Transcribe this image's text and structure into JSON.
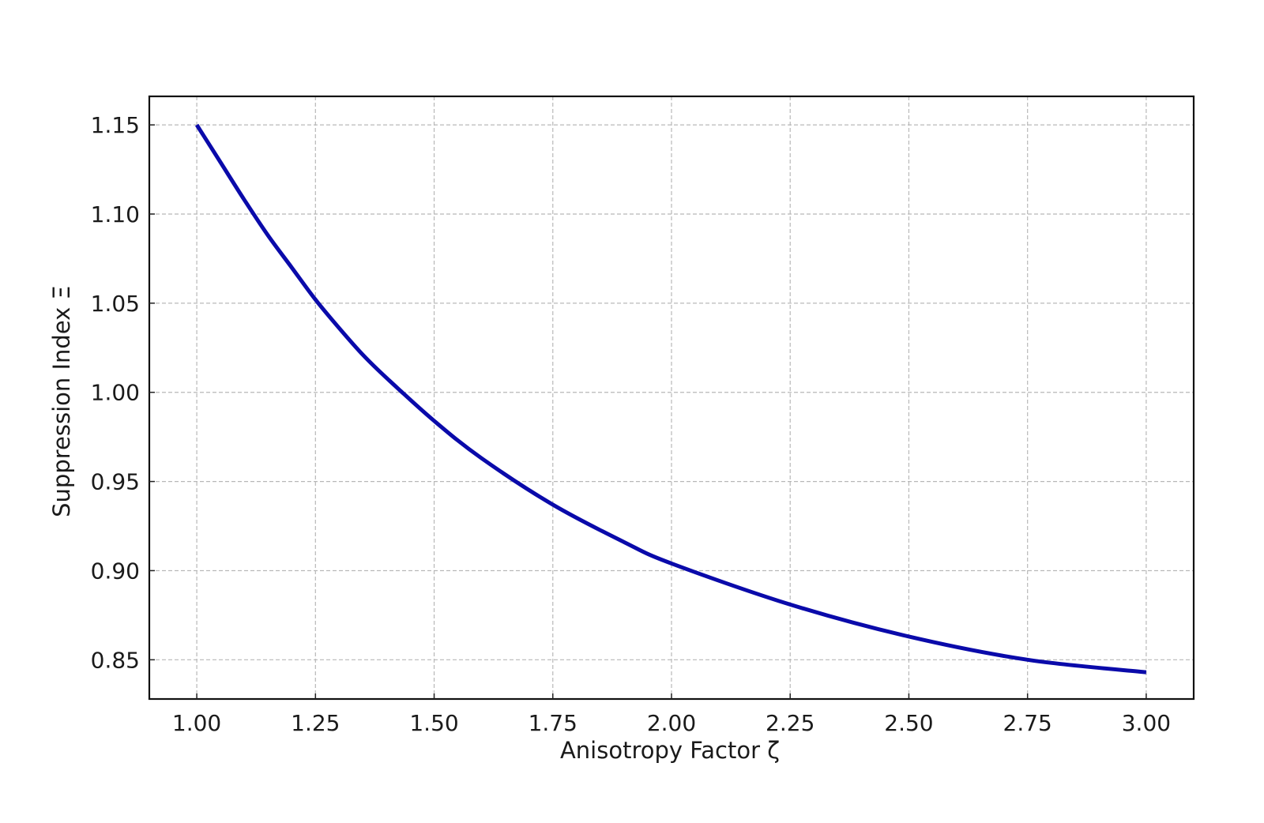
{
  "chart_data": {
    "type": "line",
    "title": "",
    "xlabel": "Anisotropy Factor ζ",
    "ylabel": "Suppression Index Ξ",
    "xlim": [
      0.9,
      3.1
    ],
    "ylim": [
      0.828,
      1.166
    ],
    "grid": true,
    "legend": "none",
    "x_ticks": [
      1.0,
      1.25,
      1.5,
      1.75,
      2.0,
      2.25,
      2.5,
      2.75,
      3.0
    ],
    "x_tick_labels": [
      "1.00",
      "1.25",
      "1.50",
      "1.75",
      "2.00",
      "2.25",
      "2.50",
      "2.75",
      "3.00"
    ],
    "y_ticks": [
      0.85,
      0.9,
      0.95,
      1.0,
      1.05,
      1.1,
      1.15
    ],
    "y_tick_labels": [
      "0.85",
      "0.90",
      "0.95",
      "1.00",
      "1.05",
      "1.10",
      "1.15"
    ],
    "series": [
      {
        "color": "#0a0aaa",
        "x": [
          1.0,
          1.05,
          1.1,
          1.15,
          1.2,
          1.25,
          1.3,
          1.35,
          1.4,
          1.5,
          1.6,
          1.75,
          1.9,
          2.0,
          2.25,
          2.5,
          2.75,
          3.0
        ],
        "y": [
          1.15,
          1.129,
          1.108,
          1.088,
          1.07,
          1.052,
          1.036,
          1.021,
          1.008,
          0.984,
          0.963,
          0.937,
          0.916,
          0.904,
          0.881,
          0.863,
          0.85,
          0.843
        ]
      }
    ]
  }
}
